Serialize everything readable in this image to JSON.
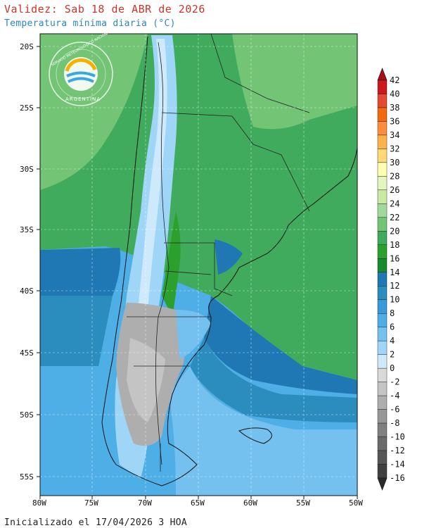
{
  "header": {
    "title": "Validez: Sab 18 de ABR de 2026",
    "subtitle": "Temperatura mínima diaria (°C)"
  },
  "footer": {
    "initialized": "Inicializado el 17/04/2026 3 HOA"
  },
  "logo": {
    "top_text": "SERVICIO METEOROLÓGICO NACIONAL",
    "bottom_text": "ARGENTINA"
  },
  "map": {
    "lat_ticks": [
      "20S",
      "25S",
      "30S",
      "35S",
      "40S",
      "45S",
      "50S",
      "55S"
    ],
    "lon_ticks": [
      "80W",
      "75W",
      "70W",
      "65W",
      "60W",
      "55W",
      "50W"
    ]
  },
  "legend": {
    "levels": [
      "42",
      "40",
      "38",
      "36",
      "34",
      "32",
      "30",
      "28",
      "26",
      "24",
      "22",
      "20",
      "18",
      "16",
      "14",
      "12",
      "10",
      "8",
      "6",
      "4",
      "2",
      "0",
      "-2",
      "-4",
      "-6",
      "-8",
      "-10",
      "-12",
      "-14",
      "-16"
    ],
    "colors": [
      "#a50f15",
      "#cb181d",
      "#e34a33",
      "#f16913",
      "#fd8d3c",
      "#feb24c",
      "#fed976",
      "#ffffb2",
      "#e5f5c0",
      "#c7e9a0",
      "#a1d99b",
      "#74c476",
      "#41ab5d",
      "#2ca02c",
      "#1a8a2e",
      "#1f78b4",
      "#2b8cbe",
      "#3a9ad9",
      "#4eaee6",
      "#74c0ef",
      "#9fd6f7",
      "#cde9fb",
      "#d9d9d9",
      "#c4c4c4",
      "#aeaeae",
      "#979797",
      "#808080",
      "#6b6b6b",
      "#555555",
      "#404040",
      "#2b2b2b"
    ]
  }
}
